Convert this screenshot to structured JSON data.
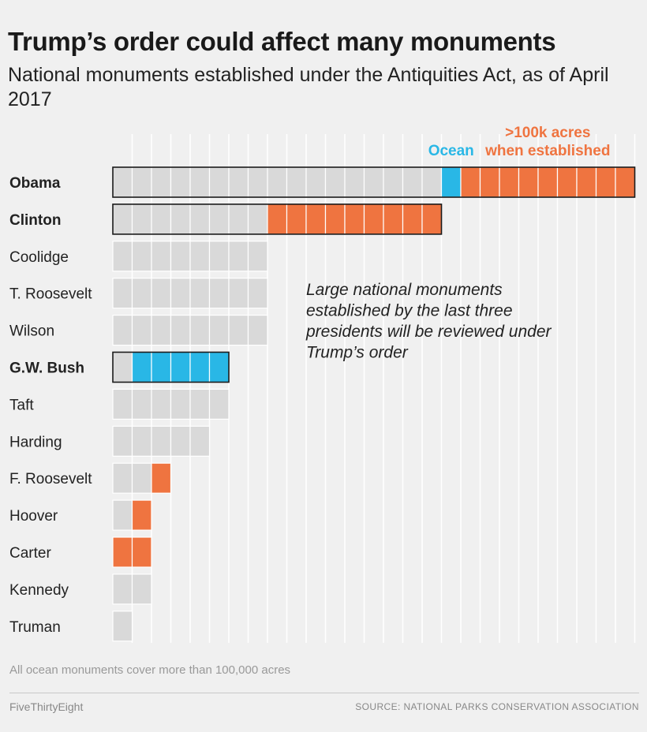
{
  "header": {
    "title": "Trump’s order could affect many monuments",
    "subtitle": "National monuments established under the Antiquities Act, as of April 2017"
  },
  "chart_data": {
    "type": "bar",
    "unit_label": "monuments",
    "legend": {
      "ocean": "Ocean",
      "large_line1": ">100k acres",
      "large_line2": "when established"
    },
    "annotation": [
      "Large national monuments",
      "established by the last three",
      "presidents will be reviewed under",
      "Trump’s order"
    ],
    "rows": [
      {
        "president": "Obama",
        "highlighted": true,
        "regular": 17,
        "ocean": 1,
        "large": 9
      },
      {
        "president": "Clinton",
        "highlighted": true,
        "regular": 8,
        "ocean": 0,
        "large": 9
      },
      {
        "president": "Coolidge",
        "highlighted": false,
        "regular": 8,
        "ocean": 0,
        "large": 0
      },
      {
        "president": "T. Roosevelt",
        "highlighted": false,
        "regular": 8,
        "ocean": 0,
        "large": 0
      },
      {
        "president": "Wilson",
        "highlighted": false,
        "regular": 8,
        "ocean": 0,
        "large": 0
      },
      {
        "president": "G.W. Bush",
        "highlighted": true,
        "regular": 1,
        "ocean": 5,
        "large": 0
      },
      {
        "president": "Taft",
        "highlighted": false,
        "regular": 6,
        "ocean": 0,
        "large": 0
      },
      {
        "president": "Harding",
        "highlighted": false,
        "regular": 5,
        "ocean": 0,
        "large": 0
      },
      {
        "president": "F. Roosevelt",
        "highlighted": false,
        "regular": 2,
        "ocean": 0,
        "large": 1
      },
      {
        "president": "Hoover",
        "highlighted": false,
        "regular": 1,
        "ocean": 0,
        "large": 1
      },
      {
        "president": "Carter",
        "highlighted": false,
        "regular": 0,
        "ocean": 0,
        "large": 2
      },
      {
        "president": "Kennedy",
        "highlighted": false,
        "regular": 2,
        "ocean": 0,
        "large": 0
      },
      {
        "president": "Truman",
        "highlighted": false,
        "regular": 1,
        "ocean": 0,
        "large": 0
      }
    ],
    "colors": {
      "regular": "#d9d9d9",
      "ocean": "#29b7e6",
      "large": "#ef7440",
      "ocean_label": "#29b7e6",
      "large_label": "#ef7440",
      "highlight_outline": "#1a1a1a",
      "gridline": "#ffffff"
    }
  },
  "footer": {
    "footnote": "All ocean monuments cover more than 100,000 acres",
    "brand": "FiveThirtyEight",
    "source": "SOURCE: NATIONAL PARKS CONSERVATION ASSOCIATION"
  }
}
